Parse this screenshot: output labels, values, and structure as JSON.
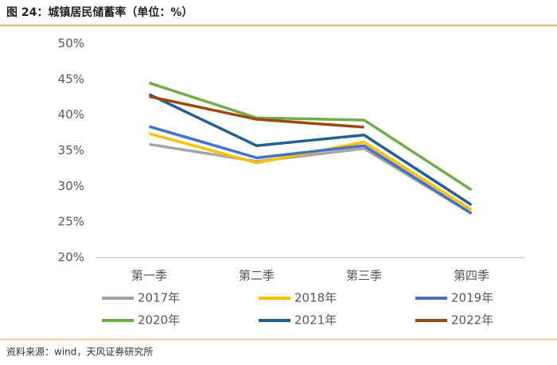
{
  "chart_data": {
    "type": "line",
    "title": "图 24：城镇居民储蓄率（单位：%）",
    "source": "资料来源：wind，天风证券研究所",
    "categories": [
      "第一季",
      "第二季",
      "第三季",
      "第四季"
    ],
    "series": [
      {
        "name": "2017年",
        "color": "#a5a5a5",
        "values": [
          35.9,
          33.5,
          35.3,
          26.2
        ]
      },
      {
        "name": "2018年",
        "color": "#ffc000",
        "values": [
          37.4,
          33.3,
          36.2,
          26.7
        ]
      },
      {
        "name": "2019年",
        "color": "#4472c4",
        "values": [
          38.4,
          34.0,
          35.7,
          26.2
        ]
      },
      {
        "name": "2020年",
        "color": "#70ad47",
        "values": [
          44.5,
          39.6,
          39.3,
          29.5
        ]
      },
      {
        "name": "2021年",
        "color": "#255e91",
        "values": [
          42.9,
          35.7,
          37.2,
          27.4
        ]
      },
      {
        "name": "2022年",
        "color": "#9e480e",
        "values": [
          42.6,
          39.4,
          38.3,
          null
        ]
      }
    ],
    "ylim": [
      20,
      50
    ],
    "yticks": [
      {
        "value": 20,
        "label": "20%"
      },
      {
        "value": 25,
        "label": "25%"
      },
      {
        "value": 30,
        "label": "30%"
      },
      {
        "value": 35,
        "label": "35%"
      },
      {
        "value": 40,
        "label": "40%"
      },
      {
        "value": 45,
        "label": "45%"
      },
      {
        "value": 50,
        "label": "50%"
      }
    ],
    "grid": false,
    "legend": "bottom"
  }
}
